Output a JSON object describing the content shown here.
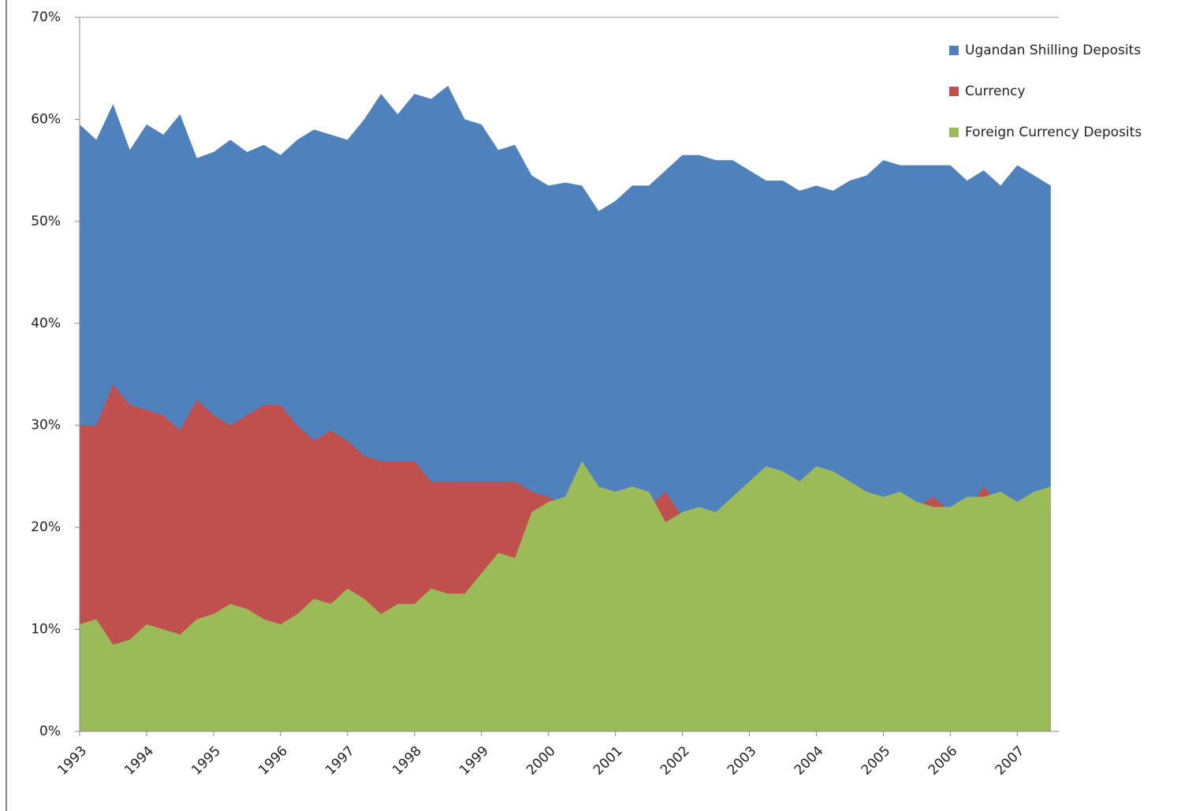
{
  "chart_data": {
    "type": "area",
    "stacked": false,
    "x": [
      1993,
      1993.25,
      1993.5,
      1993.75,
      1994,
      1994.25,
      1994.5,
      1994.75,
      1995,
      1995.25,
      1995.5,
      1995.75,
      1996,
      1996.25,
      1996.5,
      1996.75,
      1997,
      1997.25,
      1997.5,
      1997.75,
      1998,
      1998.25,
      1998.5,
      1998.75,
      1999,
      1999.25,
      1999.5,
      1999.75,
      2000,
      2000.25,
      2000.5,
      2000.75,
      2001,
      2001.25,
      2001.5,
      2001.75,
      2002,
      2002.25,
      2002.5,
      2002.75,
      2003,
      2003.25,
      2003.5,
      2003.75,
      2004,
      2004.25,
      2004.5,
      2004.75,
      2005,
      2005.25,
      2005.5,
      2005.75,
      2006,
      2006.25,
      2006.5,
      2006.75,
      2007,
      2007.25,
      2007.5
    ],
    "xlim": [
      1993,
      2007.62
    ],
    "xticks": [
      1993,
      1994,
      1995,
      1996,
      1997,
      1998,
      1999,
      2000,
      2001,
      2002,
      2003,
      2004,
      2005,
      2006,
      2007
    ],
    "ylim": [
      0,
      70
    ],
    "yticks": [
      {
        "value": 0,
        "label": "0%"
      },
      {
        "value": 10,
        "label": "10%"
      },
      {
        "value": 20,
        "label": "20%"
      },
      {
        "value": 30,
        "label": "30%"
      },
      {
        "value": 40,
        "label": "40%"
      },
      {
        "value": 50,
        "label": "50%"
      },
      {
        "value": 60,
        "label": "60%"
      },
      {
        "value": 70,
        "label": "70%"
      }
    ],
    "grid": false,
    "legend": "right",
    "series": [
      {
        "name": "Ugandan Shilling Deposits",
        "color": "#4f81bd",
        "values": [
          59.5,
          58,
          61.5,
          57,
          59.5,
          58.5,
          60.5,
          56.2,
          56.8,
          58,
          56.8,
          57.5,
          56.5,
          58,
          59,
          58.5,
          58,
          60,
          62.5,
          60.5,
          62.5,
          62,
          63.3,
          60,
          59.5,
          57,
          57.5,
          54.5,
          53.5,
          53.8,
          53.5,
          51,
          52,
          53.5,
          53.5,
          55,
          56.5,
          56.5,
          56,
          56,
          55,
          54,
          54,
          53,
          53.5,
          53,
          54,
          54.5,
          56,
          55.5,
          55.5,
          55.5,
          55.5,
          54,
          55,
          53.5,
          55.5,
          54.5,
          53.5
        ]
      },
      {
        "name": "Currency",
        "color": "#c0504d",
        "values": [
          30,
          30,
          34,
          32,
          31.5,
          31,
          29.5,
          32.5,
          31,
          30,
          31,
          32,
          32,
          30,
          28.5,
          29.5,
          28.5,
          27,
          26.5,
          26.5,
          26.5,
          24.5,
          24.5,
          24.5,
          24.5,
          24.5,
          24.5,
          23.5,
          23,
          22,
          22,
          22,
          22,
          22,
          22,
          23.5,
          21,
          21,
          21,
          21,
          21,
          21,
          21,
          21,
          21,
          21,
          21,
          21,
          21,
          21,
          22,
          23,
          21.5,
          21.5,
          24,
          22,
          22.5,
          22,
          22
        ]
      },
      {
        "name": "Foreign Currency Deposits",
        "color": "#9bbb59",
        "values": [
          10.5,
          11,
          8.5,
          9,
          10.5,
          10,
          9.5,
          11,
          11.5,
          12.5,
          12,
          11,
          10.5,
          11.5,
          13,
          12.5,
          14,
          13,
          11.5,
          12.5,
          12.5,
          14,
          13.5,
          13.5,
          15.5,
          17.5,
          17,
          21.5,
          22.5,
          23,
          26.5,
          24,
          23.5,
          24,
          23.5,
          20.5,
          21.5,
          22,
          21.5,
          23,
          24.5,
          26,
          25.5,
          24.5,
          26,
          25.5,
          24.5,
          23.5,
          23,
          23.5,
          22.5,
          22,
          22,
          23,
          23,
          23.5,
          22.5,
          23.5,
          24
        ]
      }
    ]
  }
}
